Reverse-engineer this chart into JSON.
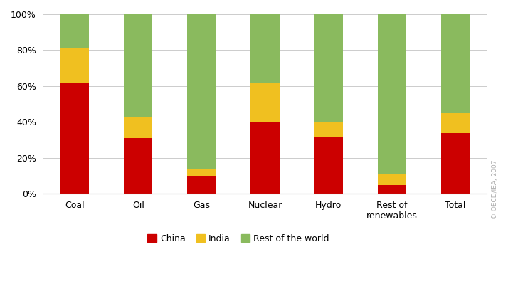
{
  "categories": [
    "Coal",
    "Oil",
    "Gas",
    "Nuclear",
    "Hydro",
    "Rest of\nrenewables",
    "Total"
  ],
  "china": [
    62,
    31,
    10,
    40,
    32,
    5,
    34
  ],
  "india": [
    19,
    12,
    4,
    22,
    8,
    6,
    11
  ],
  "rest_of_world": [
    19,
    57,
    86,
    38,
    60,
    89,
    55
  ],
  "colors": {
    "china": "#cc0000",
    "india": "#f0c020",
    "rest_of_world": "#8aba5e"
  },
  "legend_labels": [
    "China",
    "India",
    "Rest of the world"
  ],
  "ylim": [
    0,
    100
  ],
  "yticks": [
    0,
    20,
    40,
    60,
    80,
    100
  ],
  "yticklabels": [
    "0%",
    "20%",
    "40%",
    "60%",
    "80%",
    "100%"
  ],
  "watermark": "© OECD/IEA, 2007",
  "background_color": "#ffffff",
  "bar_width": 0.45
}
